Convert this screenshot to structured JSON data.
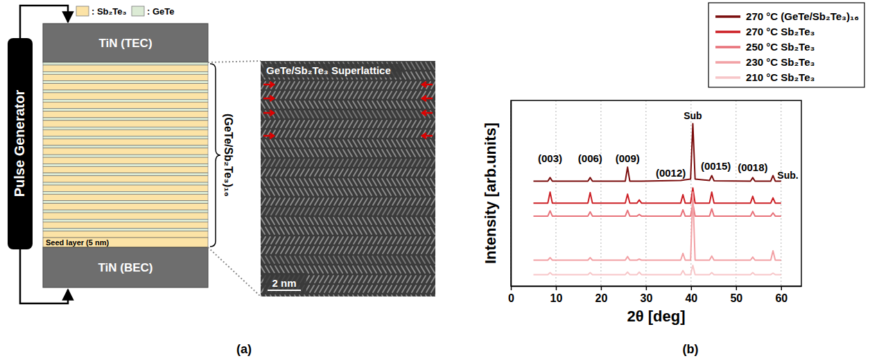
{
  "panel_labels": [
    "(a)",
    "(b)"
  ],
  "diagram": {
    "pulse_generator": "Pulse Generator",
    "legend": [
      {
        "label": ": Sb₂Te₃",
        "color": "#fce3a6"
      },
      {
        "label": ": GeTe",
        "color": "#dcebd5"
      }
    ],
    "top_electrode": "TiN (TEC)",
    "bottom_electrode": "TiN (BEC)",
    "seed_layer": "Seed layer (5 nm)",
    "stack_label": "(GeTe/Sb₂Te₃)₁₆",
    "image_title": "GeTe/Sb₂Te₃ Superlattice",
    "scale_bar": "2 nm"
  },
  "chart_data": {
    "type": "line",
    "x_label": "2θ [deg]",
    "y_label": "Intensity [arb.units]",
    "x": [
      5,
      8.2,
      8.7,
      9.2,
      17.1,
      17.6,
      18.1,
      25.4,
      25.9,
      26.4,
      28.0,
      28.5,
      29.0,
      37.7,
      38.2,
      38.7,
      39.9,
      40.4,
      40.9,
      44.1,
      44.6,
      45.1,
      53.2,
      53.7,
      54.2,
      57.7,
      58.2,
      58.7,
      60
    ],
    "series": [
      {
        "name": "270 °C (GeTe/Sb₂Te₃)₁₆",
        "color": "#7a0c0c",
        "values": [
          62.2,
          62.2,
          64.3,
          62.2,
          62.2,
          64.3,
          62.2,
          62.2,
          70.5,
          62.2,
          62.2,
          62.2,
          62.2,
          62.6,
          62.8,
          63.0,
          63.4,
          96.3,
          63.4,
          62.6,
          65.5,
          62.4,
          62.2,
          64.3,
          62.2,
          62.2,
          65.5,
          62.2,
          62.2
        ]
      },
      {
        "name": "270 °C Sb₂Te₃",
        "color": "#cc1f24",
        "values": [
          49.2,
          49.2,
          55.7,
          49.2,
          49.2,
          55.4,
          49.2,
          49.2,
          54.5,
          49.2,
          49.2,
          51.1,
          49.2,
          49.2,
          54.2,
          49.2,
          49.2,
          58.2,
          49.2,
          49.2,
          55.7,
          49.2,
          49.2,
          53.2,
          49.2,
          49.2,
          52.3,
          49.2,
          49.2
        ]
      },
      {
        "name": "250 °C Sb₂Te₃",
        "color": "#e8727a",
        "values": [
          41.5,
          41.5,
          44.6,
          41.5,
          41.5,
          44.0,
          41.5,
          41.5,
          44.9,
          41.5,
          41.5,
          42.5,
          41.5,
          41.5,
          45.2,
          41.5,
          41.5,
          48.9,
          41.5,
          41.5,
          45.8,
          41.5,
          41.5,
          44.3,
          41.5,
          41.5,
          43.4,
          41.5,
          41.5
        ]
      },
      {
        "name": "230 °C Sb₂Te₃",
        "color": "#f2a0a4",
        "values": [
          15.4,
          15.4,
          16.9,
          15.4,
          15.4,
          16.9,
          15.4,
          15.4,
          17.5,
          15.4,
          15.4,
          16.0,
          15.4,
          15.4,
          19.4,
          15.4,
          15.4,
          55.7,
          15.4,
          15.4,
          17.8,
          15.4,
          15.4,
          17.2,
          15.4,
          15.4,
          20.9,
          15.4,
          15.4
        ]
      },
      {
        "name": "210 °C Sb₂Te₃",
        "color": "#f7c6c8",
        "values": [
          6.8,
          6.8,
          8.0,
          6.8,
          6.8,
          8.0,
          6.8,
          6.8,
          8.3,
          6.8,
          6.8,
          8.3,
          6.8,
          6.8,
          9.2,
          6.8,
          6.8,
          12.3,
          6.8,
          6.8,
          8.0,
          6.8,
          6.8,
          8.0,
          6.8,
          6.8,
          7.7,
          6.8,
          6.8
        ]
      }
    ],
    "annotations": [
      {
        "text": "(003)",
        "x": 8.7,
        "y": 73.5
      },
      {
        "text": "(006)",
        "x": 17.6,
        "y": 73.5
      },
      {
        "text": "(009)",
        "x": 25.9,
        "y": 73.5
      },
      {
        "text": "(0012)",
        "x": 35.5,
        "y": 65
      },
      {
        "text": "Sub",
        "x": 40.4,
        "y": 99
      },
      {
        "text": "(0015)",
        "x": 45.5,
        "y": 69
      },
      {
        "text": "(0018)",
        "x": 53.7,
        "y": 68
      },
      {
        "text": "Sub.",
        "x": 61.5,
        "y": 63.5
      }
    ],
    "xlim": [
      0,
      64.5
    ],
    "xticks": [
      0,
      10,
      20,
      30,
      40,
      50,
      60
    ],
    "ylim": [
      0,
      110
    ],
    "grid": true,
    "legend": "top-right",
    "tick_labels": "x"
  }
}
